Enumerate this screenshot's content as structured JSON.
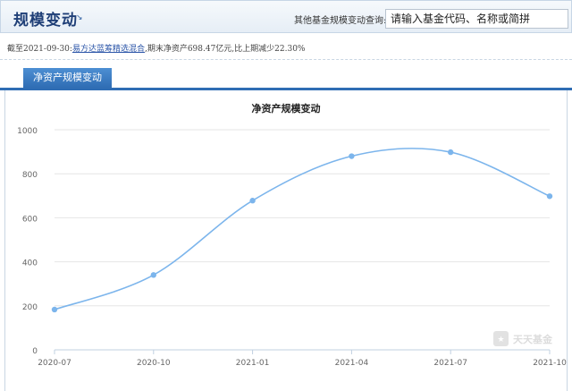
{
  "header": {
    "title": "规模变动",
    "title_icon": "corner-arrow-icon",
    "query_label": "其他基金规模变动查询:",
    "search_placeholder": "请输入基金代码、名称或简拼"
  },
  "info": {
    "prefix": "截至2021-09-30:",
    "fund_name": "易方达蓝筹精选混合",
    "suffix": ",期末净资产698.47亿元,比上期减少22.30%"
  },
  "tabs": [
    {
      "label": "净资产规模变动",
      "active": true
    }
  ],
  "watermark": {
    "text": "天天基金"
  },
  "chart_data": {
    "type": "line",
    "title": "净资产规模变动",
    "categories": [
      "2020-07",
      "2020-10",
      "2021-01",
      "2021-04",
      "2021-07",
      "2021-10"
    ],
    "yticks": [
      "0",
      "200",
      "400",
      "600",
      "800",
      "1000"
    ],
    "ylim": [
      0,
      1000
    ],
    "series": [
      {
        "values": [
          183,
          340,
          678,
          880,
          898,
          698
        ]
      }
    ],
    "line_color": "#7cb5ec",
    "grid": true
  }
}
